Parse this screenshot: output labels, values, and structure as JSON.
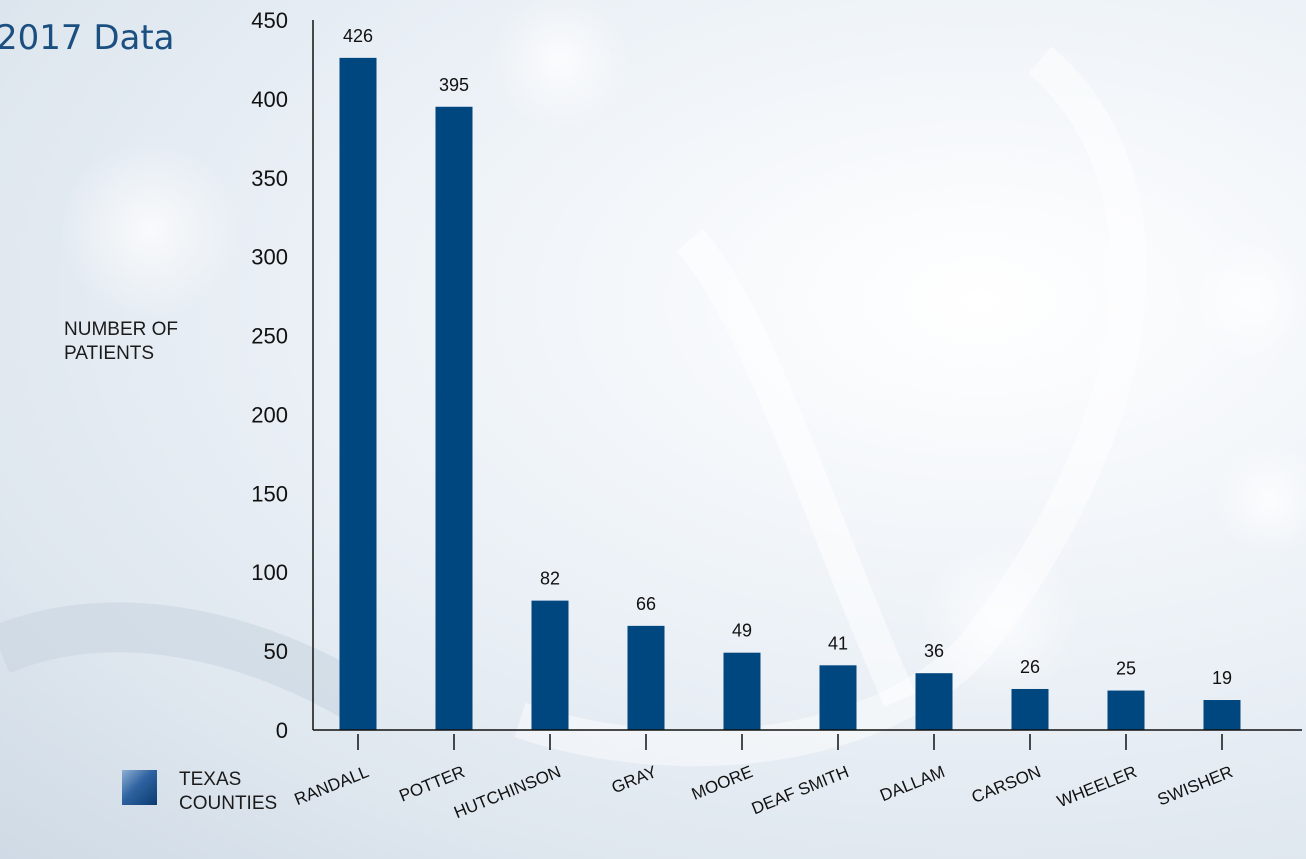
{
  "title": "2017 Data",
  "ylabel": "NUMBER OF\nPATIENTS",
  "legend_label": "TEXAS\nCOUNTIES",
  "colors": {
    "bar": "#00467f",
    "axis": "#111111"
  },
  "chart_data": {
    "type": "bar",
    "title": "2017 Data",
    "xlabel": "",
    "ylabel": "NUMBER OF PATIENTS",
    "categories": [
      "RANDALL",
      "POTTER",
      "HUTCHINSON",
      "GRAY",
      "MOORE",
      "DEAF SMITH",
      "DALLAM",
      "CARSON",
      "WHEELER",
      "SWISHER"
    ],
    "series": [
      {
        "name": "TEXAS COUNTIES",
        "values": [
          426,
          395,
          82,
          66,
          49,
          41,
          36,
          26,
          25,
          19
        ]
      }
    ],
    "data_labels": [
      "426",
      "395",
      "82",
      "66",
      "49",
      "41",
      "36",
      "26",
      "25",
      "19"
    ],
    "ylim": [
      0,
      450
    ],
    "yticks": [
      0,
      50,
      100,
      150,
      200,
      250,
      300,
      350,
      400,
      450
    ],
    "grid": false,
    "legend": "bottom-left"
  }
}
